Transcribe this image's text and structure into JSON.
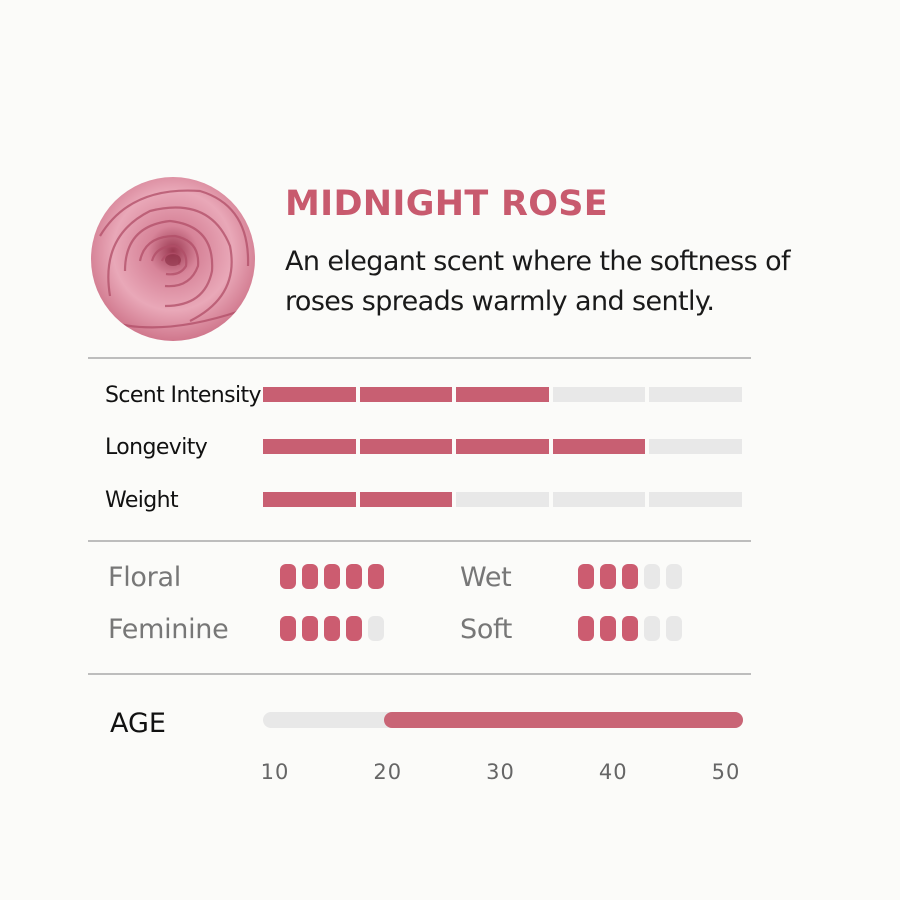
{
  "product": {
    "title": "MIDNIGHT ROSE",
    "description_line1": "An elegant scent where the softness of",
    "description_line2": "roses spreads warmly and sently.",
    "image": "rose-photo"
  },
  "colors": {
    "accent": "#c85a6e",
    "inactive": "#e8e8e8",
    "text": "#111111",
    "muted": "#777777"
  },
  "ratings": [
    {
      "label": "Scent Intensity",
      "value": 3,
      "max": 5
    },
    {
      "label": "Longevity",
      "value": 4,
      "max": 5
    },
    {
      "label": "Weight",
      "value": 2,
      "max": 5
    }
  ],
  "notes": [
    {
      "label": "Floral",
      "value": 5,
      "max": 5
    },
    {
      "label": "Wet",
      "value": 3,
      "max": 5
    },
    {
      "label": "Feminine",
      "value": 4,
      "max": 5
    },
    {
      "label": "Soft",
      "value": 3,
      "max": 5
    }
  ],
  "age": {
    "label": "AGE",
    "range": [
      20,
      50
    ],
    "ticks": [
      "10",
      "20",
      "30",
      "40",
      "50"
    ]
  }
}
